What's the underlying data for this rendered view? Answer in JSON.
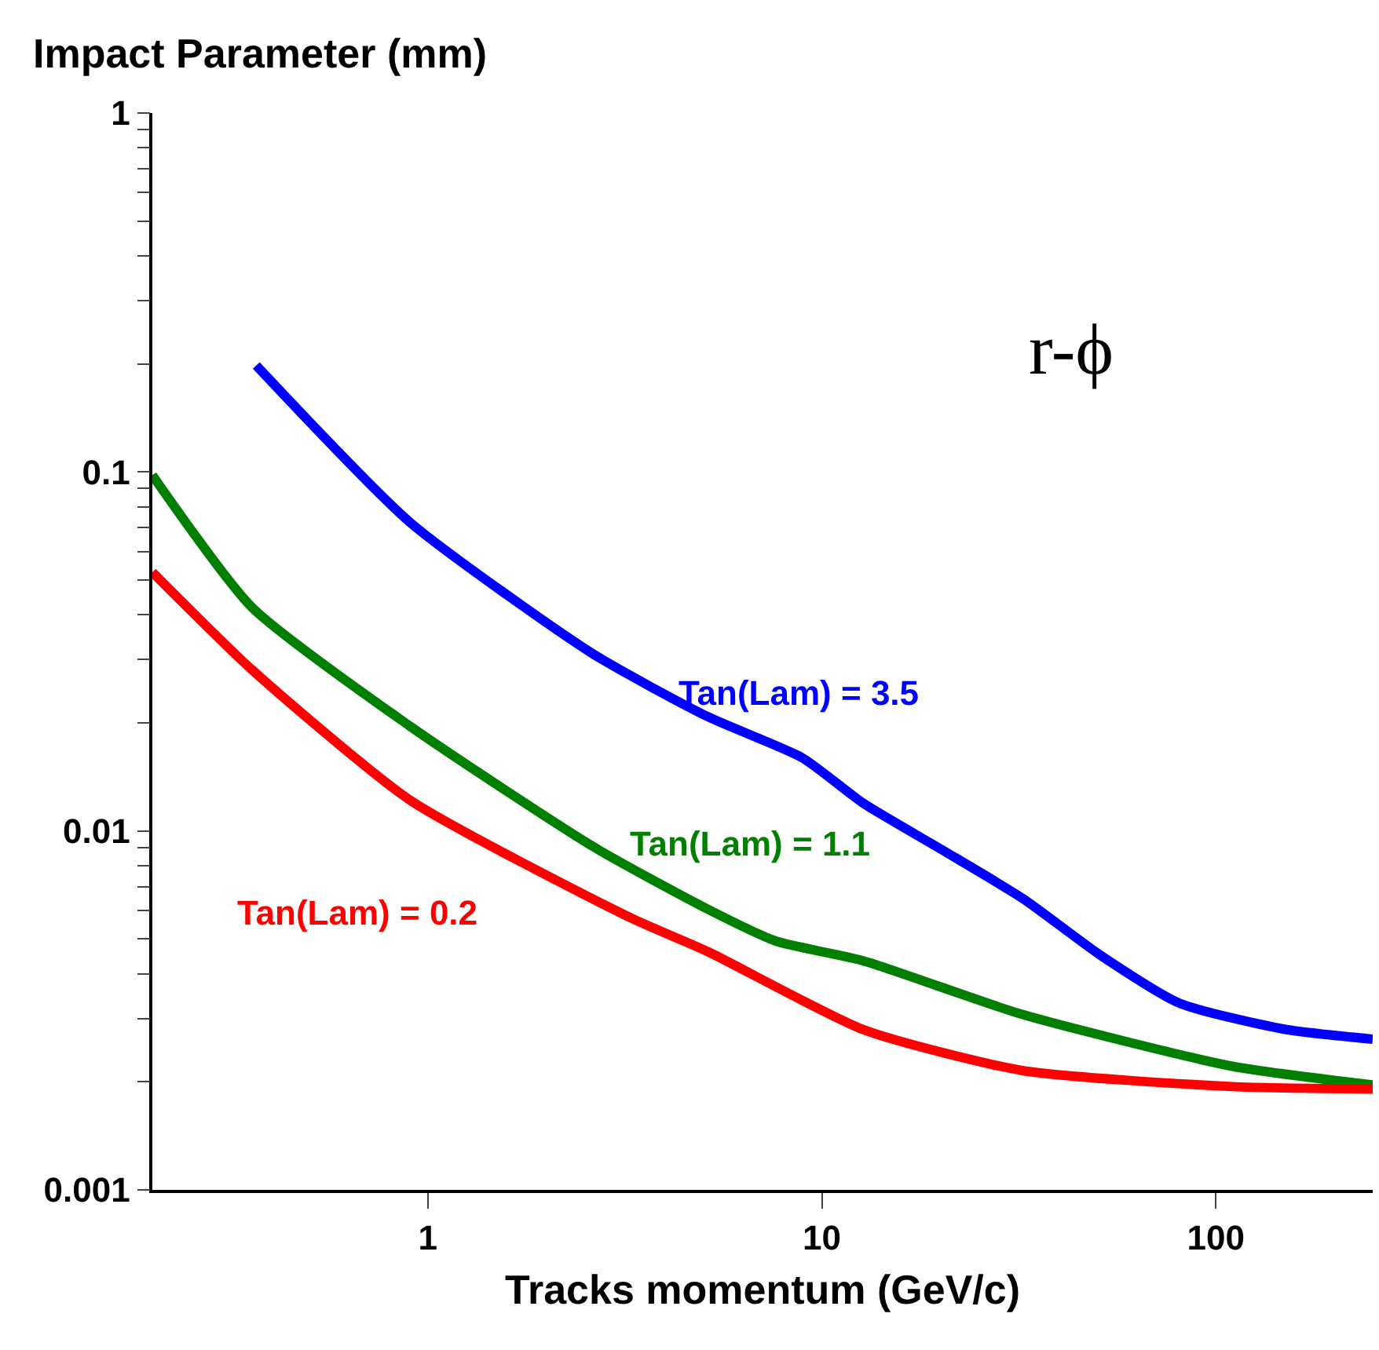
{
  "chart_data": {
    "type": "line",
    "ylabel": "Impact Parameter (mm)",
    "xlabel": "Tracks momentum (GeV/c)",
    "log": "xy",
    "legend": false,
    "xlim": [
      0.2,
      250
    ],
    "ylim": [
      0.001,
      1
    ],
    "xticks": [
      1,
      10,
      100
    ],
    "yticks": [
      0.001,
      {
        "value": 0.002,
        "label": null
      },
      {
        "value": 0.003,
        "label": null
      },
      {
        "value": 0.004,
        "label": null
      },
      {
        "value": 0.005,
        "label": null
      },
      {
        "value": 0.006,
        "label": null
      },
      {
        "value": 0.007,
        "label": null
      },
      {
        "value": 0.008,
        "label": null
      },
      {
        "value": 0.009,
        "label": null
      },
      0.01,
      {
        "value": 0.02,
        "label": null
      },
      {
        "value": 0.03,
        "label": null
      },
      {
        "value": 0.04,
        "label": null
      },
      {
        "value": 0.05,
        "label": null
      },
      {
        "value": 0.06,
        "label": null
      },
      {
        "value": 0.07,
        "label": null
      },
      {
        "value": 0.08,
        "label": null
      },
      {
        "value": 0.09,
        "label": null
      },
      0.1,
      {
        "value": 0.2,
        "label": null
      },
      {
        "value": 0.3,
        "label": null
      },
      {
        "value": 0.4,
        "label": null
      },
      {
        "value": 0.5,
        "label": null
      },
      {
        "value": 0.6,
        "label": null
      },
      {
        "value": 0.7,
        "label": null
      },
      {
        "value": 0.8,
        "label": null
      },
      {
        "value": 0.9,
        "label": null
      },
      1
    ],
    "series": [
      {
        "name": "Tan(Lam) = 3.5",
        "color": "#0000ff",
        "x": [
          0.367,
          0.9,
          2.63,
          5.14,
          8.91,
          12.8,
          20.4,
          32.3,
          51,
          80.9,
          150,
          250
        ],
        "values": [
          0.198,
          0.0725,
          0.0311,
          0.0208,
          0.016,
          0.0119,
          0.0088,
          0.00649,
          0.0045,
          0.00331,
          0.0028,
          0.00263
        ]
      },
      {
        "name": "Tan(Lam) = 1.1",
        "color": "#007f00",
        "x": [
          0.2,
          0.357,
          0.9,
          2.63,
          5.14,
          7.62,
          12.8,
          32.3,
          110,
          250
        ],
        "values": [
          0.098,
          0.0421,
          0.0196,
          0.00904,
          0.00605,
          0.00494,
          0.00434,
          0.00308,
          0.00221,
          0.00196
        ]
      },
      {
        "name": "Tan(Lam) = 0.2",
        "color": "#ff0000",
        "x": [
          0.2,
          0.357,
          0.9,
          3.25,
          5.14,
          12.8,
          32.3,
          110,
          250
        ],
        "values": [
          0.0526,
          0.0282,
          0.0122,
          0.00575,
          0.00461,
          0.00279,
          0.00215,
          0.00194,
          0.00191
        ]
      }
    ],
    "annotations": [
      "r-ϕ"
    ]
  }
}
